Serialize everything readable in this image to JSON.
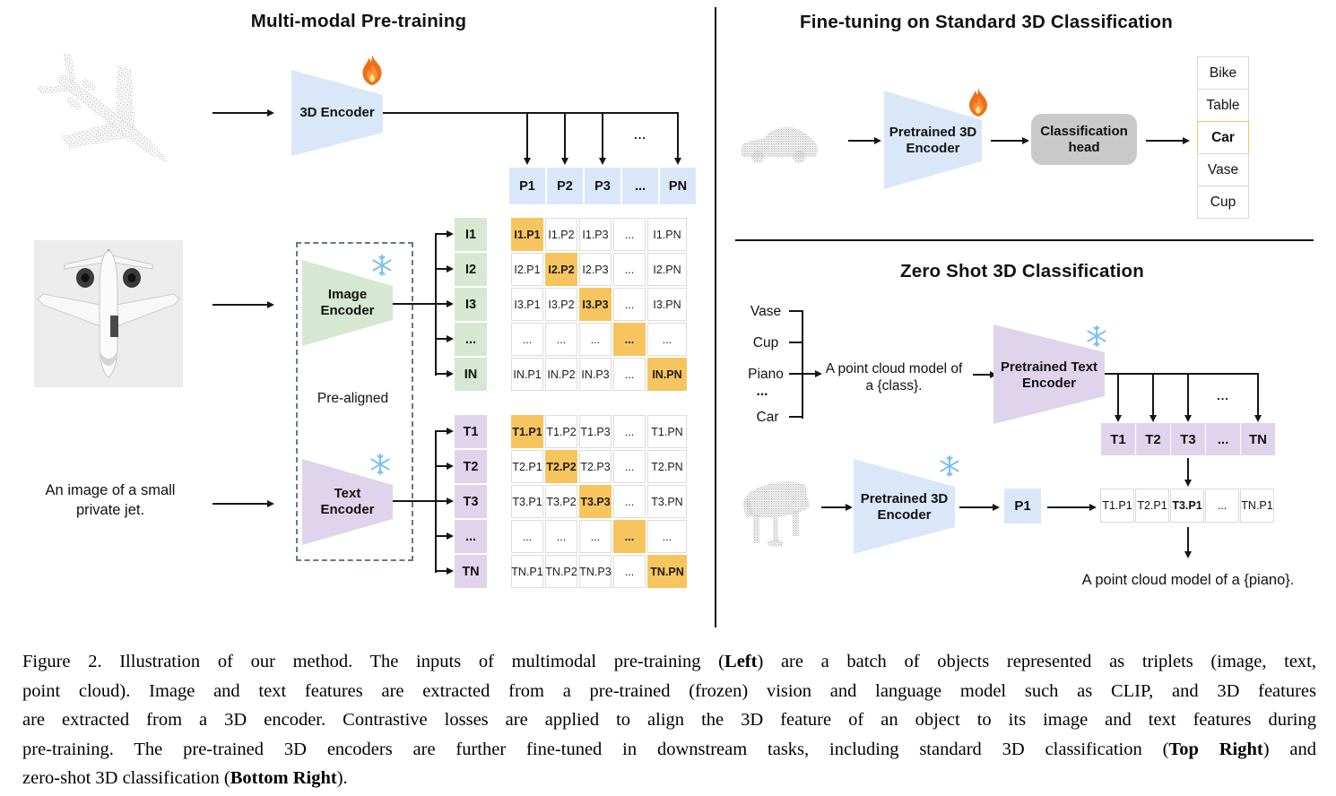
{
  "figure": {
    "pretrain": {
      "title": "Multi-modal Pre-training",
      "encoder_3d": "3D Encoder",
      "image_encoder": "Image Encoder",
      "text_encoder": "Text Encoder",
      "prealigned": "Pre-aligned",
      "image_caption_line1": "An image of a small",
      "image_caption_line2": "private jet.",
      "dots": "...",
      "p_row": [
        "P1",
        "P2",
        "P3",
        "...",
        "PN"
      ],
      "i_labels": [
        "I1",
        "I2",
        "I3",
        "...",
        "IN"
      ],
      "i_matrix": [
        [
          "I1.P1",
          "I1.P2",
          "I1.P3",
          "...",
          "I1.PN"
        ],
        [
          "I2.P1",
          "I2.P2",
          "I2.P3",
          "...",
          "I2.PN"
        ],
        [
          "I3.P1",
          "I3.P2",
          "I3.P3",
          "...",
          "I3.PN"
        ],
        [
          "...",
          "...",
          "...",
          "...",
          "..."
        ],
        [
          "IN.P1",
          "IN.P2",
          "IN.P3",
          "...",
          "IN.PN"
        ]
      ],
      "t_labels": [
        "T1",
        "T2",
        "T3",
        "...",
        "TN"
      ],
      "t_matrix": [
        [
          "T1.P1",
          "T1.P2",
          "T1.P3",
          "...",
          "T1.PN"
        ],
        [
          "T2.P1",
          "T2.P2",
          "T2.P3",
          "...",
          "T2.PN"
        ],
        [
          "T3.P1",
          "T3.P2",
          "T3.P3",
          "...",
          "T3.PN"
        ],
        [
          "...",
          "...",
          "...",
          "...",
          "..."
        ],
        [
          "TN.P1",
          "TN.P2",
          "TN.P3",
          "...",
          "TN.PN"
        ]
      ]
    },
    "finetune": {
      "title": "Fine-tuning on Standard 3D Classification",
      "encoder": "Pretrained 3D Encoder",
      "head": "Classification head",
      "classes": [
        "Bike",
        "Table",
        "Car",
        "Vase",
        "Cup"
      ]
    },
    "zeroshot": {
      "title": "Zero Shot 3D Classification",
      "prompt_classes": [
        "Vase",
        "Cup",
        "Piano",
        "...",
        "Car"
      ],
      "prompt_line1": "A point cloud model of",
      "prompt_line2": "a {class}.",
      "text_encoder": "Pretrained Text Encoder",
      "encoder_3d": "Pretrained 3D Encoder",
      "p1": "P1",
      "t_row": [
        "T1",
        "T2",
        "T3",
        "...",
        "TN"
      ],
      "tp_row": [
        "T1.P1",
        "T2.P1",
        "T3.P1",
        "...",
        "TN.P1"
      ],
      "result": "A point cloud model of a {piano}.",
      "dots": "..."
    },
    "icons": {
      "flame": "fire (trainable)",
      "snowflake": "snowflake (frozen)"
    },
    "colors": {
      "blue": "#dae7f8",
      "green": "#d6e8d2",
      "purple": "#e0d4ec",
      "highlight_orange": "#f7c55f",
      "head_gray": "#c9c9c9"
    }
  },
  "caption": {
    "lines": [
      [
        {
          "t": "Figure 2. Illustration of our method. The inputs of multimodal pre-training ("
        },
        {
          "t": "Left",
          "b": true
        },
        {
          "t": ") are a batch of objects represented as triplets (image, text,"
        }
      ],
      [
        {
          "t": "point cloud). Image and text features are extracted from a pre-trained (frozen) vision and language model such as CLIP, and 3D features"
        }
      ],
      [
        {
          "t": "are extracted from a 3D encoder. Contrastive losses are applied to align the 3D feature of an object to its image and text features during"
        }
      ],
      [
        {
          "t": "pre-training. The pre-trained 3D encoders are further fine-tuned in downstream tasks, including standard 3D classification ("
        },
        {
          "t": "Top Right",
          "b": true
        },
        {
          "t": ") and"
        }
      ],
      [
        {
          "t": "zero-shot 3D classification ("
        },
        {
          "t": "Bottom Right",
          "b": true
        },
        {
          "t": ")."
        }
      ]
    ]
  }
}
